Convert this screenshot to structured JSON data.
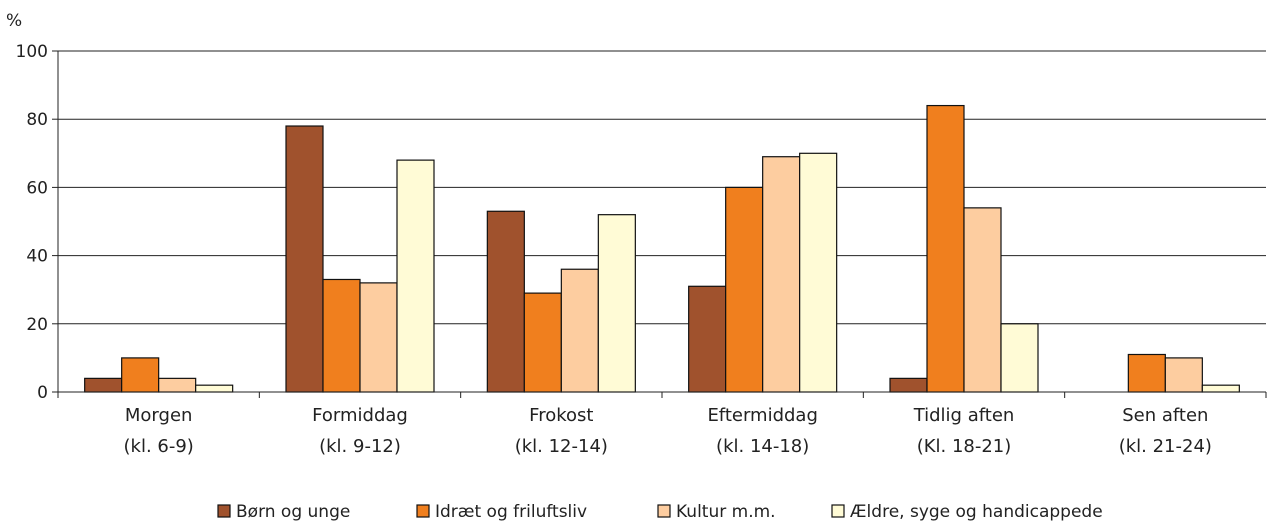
{
  "chart_data": {
    "type": "bar",
    "ylabel": "%",
    "ylim": [
      0,
      100
    ],
    "yticks": [
      0,
      20,
      40,
      60,
      80,
      100
    ],
    "grid": true,
    "legend_position": "bottom",
    "categories": [
      {
        "line1": "Morgen",
        "line2": "(kl. 6-9)"
      },
      {
        "line1": "Formiddag",
        "line2": "(kl. 9-12)"
      },
      {
        "line1": "Frokost",
        "line2": "(kl. 12-14)"
      },
      {
        "line1": "Eftermiddag",
        "line2": "(kl. 14-18)"
      },
      {
        "line1": "Tidlig aften",
        "line2": "(Kl. 18-21)"
      },
      {
        "line1": "Sen aften",
        "line2": "(kl. 21-24)"
      }
    ],
    "series": [
      {
        "name": "Børn og unge",
        "color": "#a0522d",
        "values": [
          4,
          78,
          53,
          31,
          4,
          0
        ]
      },
      {
        "name": "Idræt og friluftsliv",
        "color": "#f07f1e",
        "values": [
          10,
          33,
          29,
          60,
          84,
          11
        ]
      },
      {
        "name": "Kultur m.m.",
        "color": "#fdcda0",
        "values": [
          4,
          32,
          36,
          69,
          54,
          10
        ]
      },
      {
        "name": "Ældre, syge og handicappede",
        "color": "#fffbd6",
        "values": [
          2,
          68,
          52,
          70,
          20,
          2
        ]
      }
    ]
  }
}
